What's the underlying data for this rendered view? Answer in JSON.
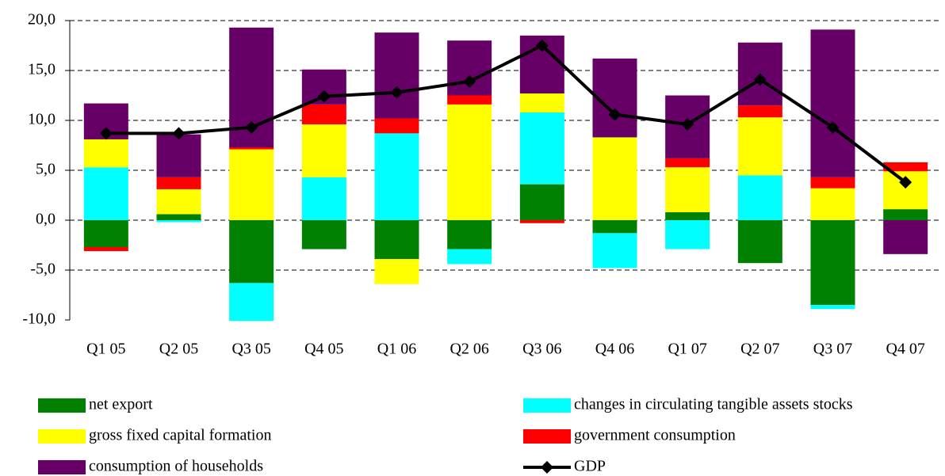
{
  "chart_data": {
    "type": "bar",
    "stacked": true,
    "categories": [
      "Q1 05",
      "Q2 05",
      "Q3 05",
      "Q4 05",
      "Q1 06",
      "Q2 06",
      "Q3 06",
      "Q4 06",
      "Q1 07",
      "Q2 07",
      "Q3 07",
      "Q4 07"
    ],
    "series": [
      {
        "name": "net export",
        "color": "#008000",
        "values": [
          -2.7,
          0.6,
          -6.3,
          -2.9,
          -3.9,
          -2.9,
          3.6,
          -1.3,
          0.8,
          -4.3,
          -8.5,
          1.1
        ]
      },
      {
        "name": "changes in circulating tangible assets stocks",
        "color": "#00ffff",
        "values": [
          5.3,
          -0.2,
          -3.8,
          4.3,
          8.7,
          -1.5,
          7.2,
          -3.5,
          -2.9,
          4.5,
          -0.4,
          0
        ]
      },
      {
        "name": "gross fixed capital formation",
        "color": "#ffff00",
        "values": [
          2.8,
          2.5,
          7.1,
          5.3,
          -2.5,
          11.6,
          1.9,
          8.3,
          4.5,
          5.8,
          3.2,
          3.8
        ]
      },
      {
        "name": "government consumption",
        "color": "#ff0000",
        "values": [
          -0.4,
          1.2,
          0.2,
          2.0,
          1.5,
          0.9,
          -0.3,
          0,
          0.9,
          1.2,
          1.1,
          0.9
        ]
      },
      {
        "name": "consumption of households",
        "color": "#660066",
        "values": [
          3.6,
          4.3,
          12.0,
          3.5,
          8.6,
          5.5,
          5.8,
          7.9,
          6.3,
          6.3,
          14.8,
          -3.4
        ]
      },
      {
        "name": "GDP",
        "color": "#000000",
        "type": "line",
        "values": [
          8.7,
          8.7,
          9.3,
          12.4,
          12.8,
          13.9,
          17.5,
          10.6,
          9.6,
          14.1,
          9.3,
          3.8
        ]
      }
    ],
    "ylim": [
      -10,
      20
    ],
    "yticks": [
      {
        "value": -10,
        "label": "-10,0"
      },
      {
        "value": -5,
        "label": "-5,0"
      },
      {
        "value": 0,
        "label": "0,0"
      },
      {
        "value": 5,
        "label": "5,0"
      },
      {
        "value": 10,
        "label": "10,0"
      },
      {
        "value": 15,
        "label": "15,0"
      },
      {
        "value": 20,
        "label": "20,0"
      }
    ],
    "grid": true,
    "legend": "bottom"
  }
}
